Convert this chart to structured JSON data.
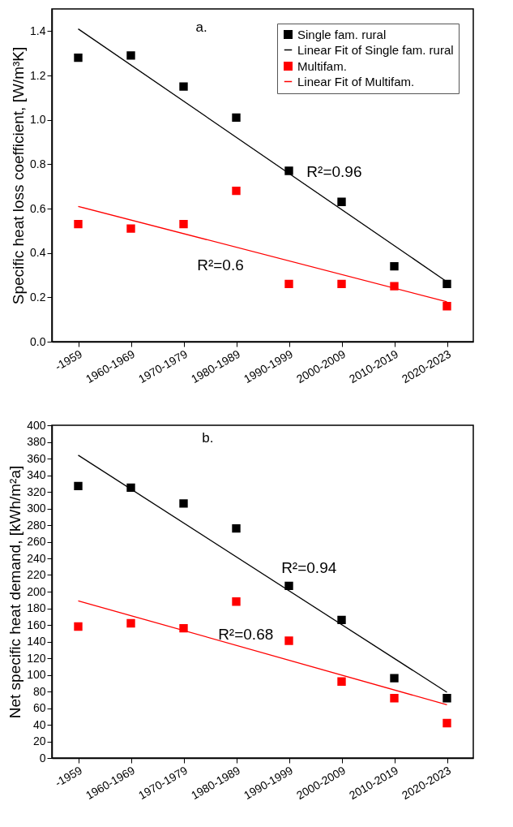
{
  "chart_data": [
    {
      "type": "scatter",
      "categories": [
        "-1959",
        "1960-1969",
        "1970-1979",
        "1980-1989",
        "1990-1999",
        "2000-2009",
        "2010-2019",
        "2020-2023"
      ],
      "ylabel": "Specific heat loss coefficient, [W/m³K]",
      "ylim": [
        0,
        1.5
      ],
      "yticks": [
        {
          "value": 0,
          "label": "0.0"
        },
        0.2,
        0.4,
        0.6,
        0.8,
        {
          "value": 1,
          "label": "1.0"
        },
        1.2,
        1.4
      ],
      "legend": "top right",
      "grid": false,
      "series": [
        {
          "name": "Single fam. rural",
          "color": "#000000",
          "marker": "square",
          "values": [
            1.28,
            1.29,
            1.15,
            1.01,
            0.77,
            0.63,
            0.34,
            0.26
          ]
        },
        {
          "name": "Linear Fit of Single fam. rural",
          "type": "line",
          "color": "#000000",
          "marker": "none",
          "x": [
            "-1959",
            "2020-2023"
          ],
          "values": [
            1.41,
            0.27
          ]
        },
        {
          "name": "Multifam.",
          "color": "#ff0000",
          "marker": "square",
          "values": [
            0.53,
            0.51,
            0.53,
            0.68,
            0.26,
            0.26,
            0.25,
            0.16
          ]
        },
        {
          "name": "Linear Fit of Multifam.",
          "type": "line",
          "color": "#ff0000",
          "marker": "none",
          "x": [
            "-1959",
            "2020-2023"
          ],
          "values": [
            0.61,
            0.18
          ]
        }
      ],
      "annotations": [
        "a.",
        "R²=0.96",
        "R²=0.6"
      ]
    },
    {
      "type": "scatter",
      "categories": [
        "-1959",
        "1960-1969",
        "1970-1979",
        "1980-1989",
        "1990-1999",
        "2000-2009",
        "2010-2019",
        "2020-2023"
      ],
      "ylabel": "Net specific heat demand, [kWh/m²a]",
      "ylim": [
        0,
        400
      ],
      "yticks": [
        0,
        20,
        40,
        60,
        80,
        100,
        120,
        140,
        160,
        180,
        200,
        220,
        240,
        260,
        280,
        300,
        320,
        340,
        360,
        380,
        400
      ],
      "legend": "top right",
      "grid": false,
      "series": [
        {
          "name": "Single fam. rural",
          "color": "#000000",
          "marker": "square",
          "values": [
            327,
            325,
            306,
            276,
            207,
            166,
            96,
            72
          ]
        },
        {
          "name": "Linear Fit of Single fam. rural",
          "type": "line",
          "color": "#000000",
          "marker": "none",
          "x": [
            "-1959",
            "2020-2023"
          ],
          "values": [
            364,
            79
          ]
        },
        {
          "name": "Multifam.",
          "color": "#ff0000",
          "marker": "square",
          "values": [
            158,
            162,
            156,
            188,
            141,
            92,
            72,
            42
          ]
        },
        {
          "name": "Linear Fit of Multifam.",
          "type": "line",
          "color": "#ff0000",
          "marker": "none",
          "x": [
            "-1959",
            "2020-2023"
          ],
          "values": [
            189,
            64
          ]
        }
      ],
      "annotations": [
        "b.",
        "R²=0.94",
        "R²=0.68"
      ]
    }
  ]
}
